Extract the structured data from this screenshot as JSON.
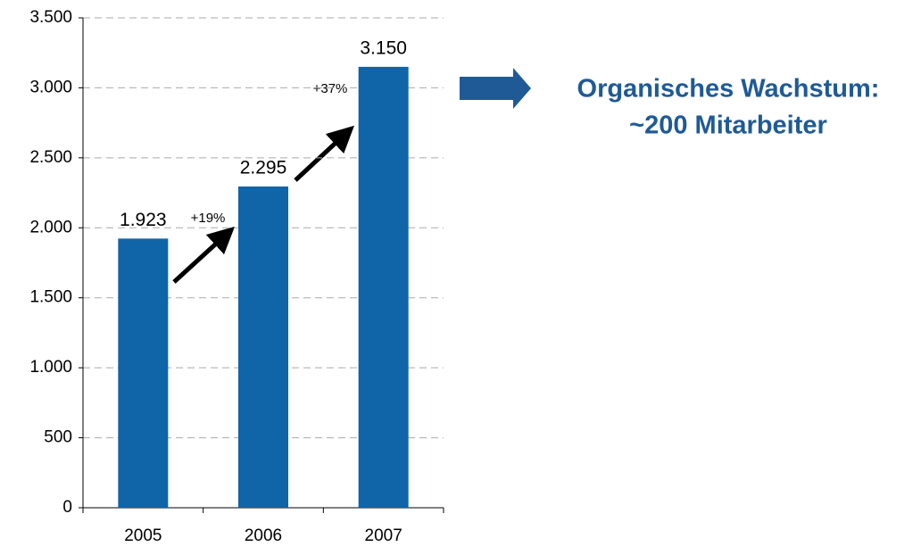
{
  "chart_data": {
    "type": "bar",
    "categories": [
      "2005",
      "2006",
      "2007"
    ],
    "values": [
      1923,
      2295,
      3150
    ],
    "value_labels": [
      "1.923",
      "2.295",
      "3.150"
    ],
    "color": "#1064a8",
    "ylim": [
      0,
      3500
    ],
    "yticks": [
      0,
      500,
      {
        "value": 1000,
        "label": "1.000"
      },
      {
        "value": 1500,
        "label": "1.500"
      },
      {
        "value": 2000,
        "label": "2.000"
      },
      {
        "value": 2500,
        "label": "2.500"
      },
      {
        "value": 3000,
        "label": "3.000"
      },
      {
        "value": 3500,
        "label": "3.500"
      }
    ],
    "grid": true,
    "annotations": [
      "+19%",
      "+37%",
      "Organisches Wachstum:",
      "~200 Mitarbeiter"
    ]
  }
}
